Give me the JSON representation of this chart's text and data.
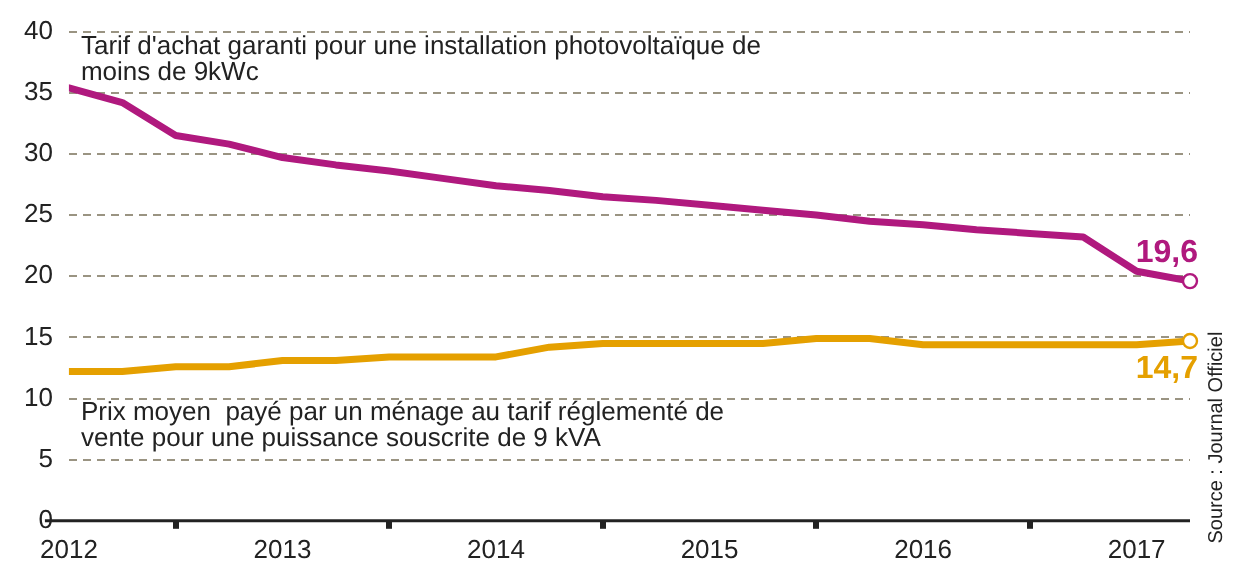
{
  "chart_data": {
    "type": "line",
    "x": [
      2012.5,
      2012.75,
      2013,
      2013.25,
      2013.5,
      2013.75,
      2014,
      2014.25,
      2014.5,
      2014.75,
      2015,
      2015.25,
      2015.5,
      2015.75,
      2016,
      2016.25,
      2016.5,
      2016.75,
      2017,
      2017.25,
      2017.5,
      2017.75
    ],
    "series": [
      {
        "name": "Tarif d'achat garanti pour une installation photovoltaïque de moins de 9kWc",
        "color": "#b0197e",
        "values": [
          35.4,
          34.2,
          31.5,
          30.8,
          29.7,
          29.1,
          28.6,
          28.0,
          27.4,
          27.0,
          26.5,
          26.2,
          25.8,
          25.4,
          25.0,
          24.5,
          24.2,
          23.8,
          23.5,
          23.2,
          20.4,
          19.6
        ]
      },
      {
        "name": "Prix moyen  payé par un ménage au tarif réglementé de vente pour une puissance souscrite de 9 kVA",
        "color": "#e5a000",
        "values": [
          12.2,
          12.2,
          12.6,
          12.6,
          13.1,
          13.1,
          13.4,
          13.4,
          13.4,
          14.2,
          14.5,
          14.5,
          14.5,
          14.5,
          14.9,
          14.9,
          14.4,
          14.4,
          14.4,
          14.4,
          14.4,
          14.7
        ]
      }
    ],
    "xlim": [
      2012.5,
      2017.75
    ],
    "xticks": [
      {
        "value": 2012.5,
        "label": "2012"
      },
      {
        "value": 2013,
        "label": null
      },
      {
        "value": 2013.5,
        "label": "2013"
      },
      {
        "value": 2014,
        "label": null
      },
      {
        "value": 2014.5,
        "label": "2014"
      },
      {
        "value": 2015,
        "label": null
      },
      {
        "value": 2015.5,
        "label": "2015"
      },
      {
        "value": 2016,
        "label": null
      },
      {
        "value": 2016.5,
        "label": "2016"
      },
      {
        "value": 2017,
        "label": null
      },
      {
        "value": 2017.5,
        "label": "2017"
      }
    ],
    "ylim": [
      0,
      40
    ],
    "yticks": [
      0,
      5,
      10,
      15,
      20,
      25,
      30,
      35,
      40
    ],
    "grid": "y",
    "legend": false,
    "marker": "none",
    "line_style": "solid",
    "annotations": [
      {
        "text": "19,6",
        "x": 2017.75,
        "y": 19.6
      },
      {
        "text": "14,7",
        "x": 2017.75,
        "y": 14.7
      },
      "Source : Journal Officiel"
    ]
  }
}
